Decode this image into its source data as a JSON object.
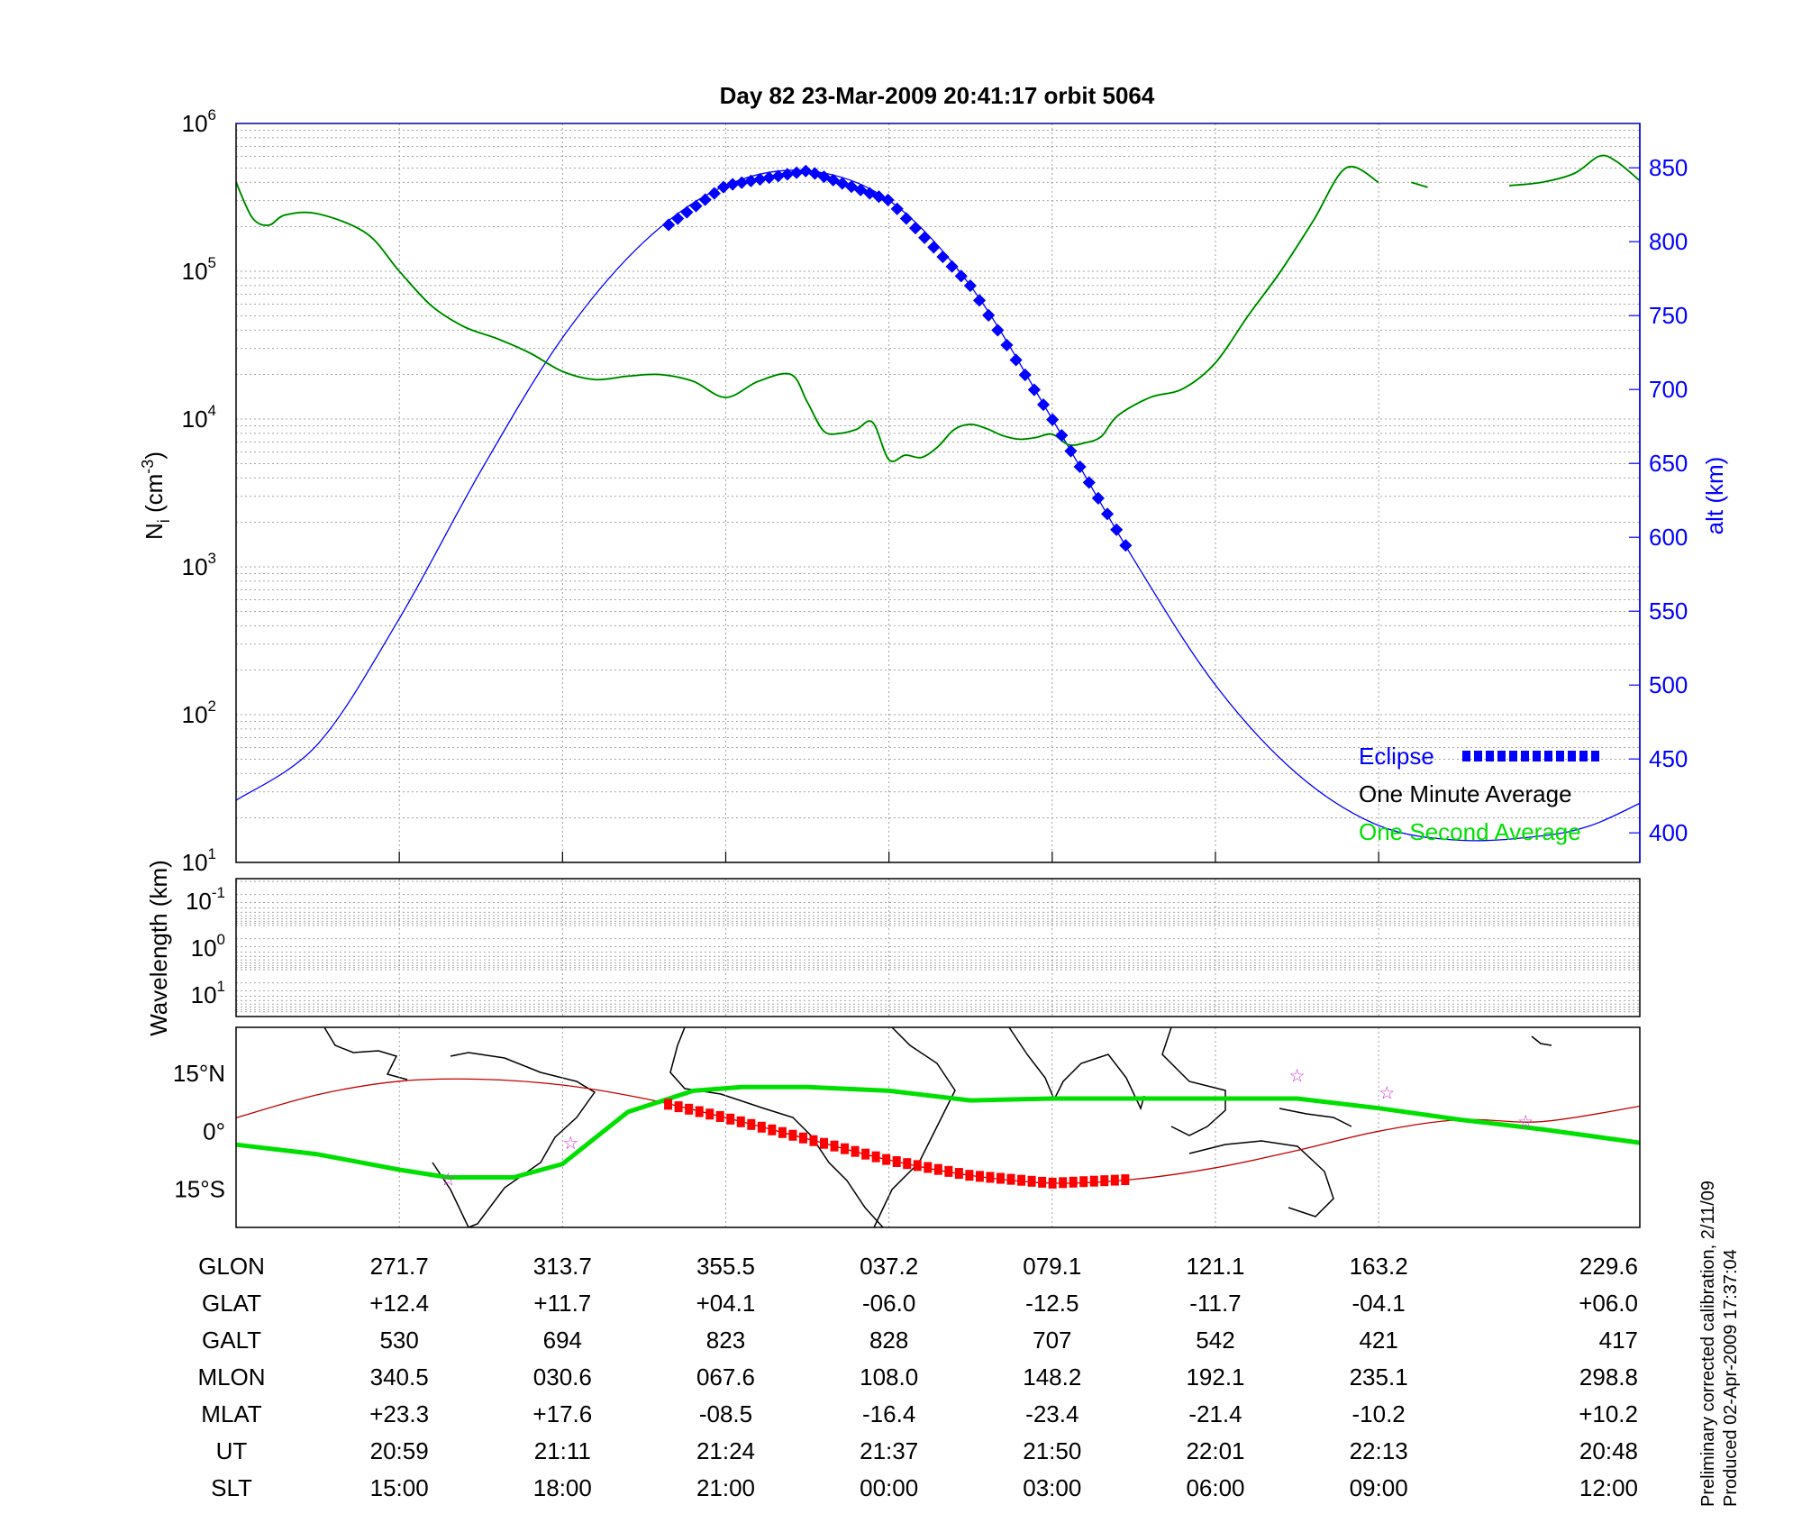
{
  "title": "Day 82  23-Mar-2009 20:41:17   orbit 5064",
  "colors": {
    "green": "#00e000",
    "darkgreen": "#006400",
    "blue": "#0000ff",
    "red": "#ff0000",
    "track": "#c00000",
    "magenta": "#cc33cc"
  },
  "chart_data": [
    {
      "type": "line",
      "name": "ion-density-altitude",
      "ylabel": "N_i (cm^-3)",
      "ylabel_right": "alt (km)",
      "y_log": true,
      "ylim": [
        10,
        1000000
      ],
      "y_ticks": [
        "10",
        "10",
        "10",
        "10",
        "10",
        "10"
      ],
      "y_tick_exps": [
        "1",
        "2",
        "3",
        "4",
        "5",
        "6"
      ],
      "y2lim": [
        380,
        880
      ],
      "y2_ticks": [
        "400",
        "450",
        "500",
        "550",
        "600",
        "650",
        "700",
        "750",
        "800",
        "850"
      ],
      "grid": true,
      "legend": {
        "position": "bottom-right",
        "entries": [
          "Eclipse",
          "One Minute Average",
          "One Second Average"
        ]
      },
      "x_range": [
        0,
        8.6
      ],
      "series": [
        {
          "name": "One Minute Average",
          "x": [
            0,
            0.1,
            0.2,
            0.3,
            0.5,
            0.8,
            1.0,
            1.2,
            1.4,
            1.6,
            1.8,
            2.0,
            2.2,
            2.4,
            2.6,
            2.8,
            3.0,
            3.2,
            3.4,
            3.5,
            3.6,
            3.7,
            3.8,
            3.9,
            4.0,
            4.1,
            4.2,
            4.3,
            4.4,
            4.5,
            4.6,
            4.7,
            4.8,
            4.9,
            5.0,
            5.1,
            5.2,
            5.3,
            5.4,
            5.6,
            5.8,
            6.0,
            6.2,
            6.4,
            6.6,
            6.8,
            7.0,
            7.05,
            7.1,
            7.2,
            7.3
          ],
          "y": [
            400000,
            230000,
            205000,
            240000,
            245000,
            180000,
            100000,
            58000,
            42000,
            35000,
            28000,
            21000,
            18500,
            19500,
            20000,
            18000,
            14000,
            18000,
            20000,
            13000,
            8300,
            8000,
            8500,
            9500,
            5300,
            5700,
            5500,
            6500,
            8500,
            9200,
            8600,
            7700,
            7300,
            7500,
            7900,
            6700,
            6900,
            7600,
            10500,
            14000,
            16000,
            24000,
            50000,
            100000,
            220000,
            500000,
            400000,
            null,
            null,
            400000,
            370000
          ]
        },
        {
          "name": "One Minute Average (late)",
          "x": [
            7.8,
            8.0,
            8.2,
            8.35,
            8.45,
            8.6
          ],
          "y": [
            380000,
            400000,
            460000,
            600000,
            560000,
            410000
          ]
        },
        {
          "name": "altitude",
          "axis": "right",
          "x": [
            0,
            0.5,
            1.0,
            1.5,
            2.0,
            2.5,
            3.0,
            3.5,
            4.0,
            4.5,
            5.0,
            5.5,
            6.0,
            6.5,
            7.0,
            7.5,
            8.0,
            8.3,
            8.6
          ],
          "y": [
            422,
            460,
            545,
            645,
            735,
            800,
            838,
            848,
            828,
            770,
            680,
            585,
            500,
            440,
            405,
            395,
            398,
            405,
            420
          ]
        },
        {
          "name": "Eclipse",
          "axis": "right",
          "x_start": 2.65,
          "x_end": 5.45
        }
      ]
    },
    {
      "type": "line",
      "name": "wavelength",
      "ylabel": "Wavelength (km)",
      "y_ticks": [
        "10",
        "10",
        "10"
      ],
      "y_tick_exps": [
        "-1",
        "0",
        "1"
      ],
      "grid": true
    },
    {
      "type": "line",
      "name": "map-track",
      "y_ticks": [
        "15°N",
        "0°",
        "15°S"
      ],
      "ylim": [
        -25,
        27
      ],
      "series": [
        {
          "name": "geographic-track",
          "x": [
            0,
            0.5,
            1.0,
            1.3,
            1.7,
            2.0,
            2.4,
            2.8,
            3.1,
            3.5,
            4.0,
            4.5,
            5.0,
            5.5,
            6.0,
            6.5,
            7.0,
            7.5,
            8.0,
            8.6
          ],
          "y": [
            -3.5,
            -6,
            -10,
            -12,
            -12,
            -8.5,
            5,
            10.5,
            11.5,
            11.5,
            10.5,
            8,
            8.5,
            8.5,
            8.5,
            8.5,
            6,
            3,
            0.5,
            -3
          ]
        },
        {
          "name": "magnetic-equator-track",
          "x": [
            0,
            0.5,
            1.0,
            1.5,
            2.0,
            2.5,
            3.0,
            3.5,
            4.0,
            4.5,
            5.0,
            5.5,
            6.0,
            6.5,
            7.0,
            7.5,
            8.0,
            8.6
          ],
          "y": [
            3.5,
            9.5,
            13,
            13.5,
            12,
            8.5,
            3.5,
            -2,
            -7.5,
            -11.5,
            -13.5,
            -12.5,
            -9.5,
            -5,
            0,
            3,
            2.5,
            6.5
          ]
        },
        {
          "name": "eclipse-track",
          "x_start": 2.65,
          "x_end": 5.45
        }
      ]
    }
  ],
  "table": {
    "row_labels": [
      "GLON",
      "GLAT",
      "GALT",
      "MLON",
      "MLAT",
      "UT",
      "SLT"
    ],
    "columns": [
      [
        "271.7",
        "+12.4",
        "530",
        "340.5",
        "+23.3",
        "20:59",
        "15:00"
      ],
      [
        "313.7",
        "+11.7",
        "694",
        "030.6",
        "+17.6",
        "21:11",
        "18:00"
      ],
      [
        "355.5",
        "+04.1",
        "823",
        "067.6",
        "-08.5",
        "21:24",
        "21:00"
      ],
      [
        "037.2",
        "-06.0",
        "828",
        "108.0",
        "-16.4",
        "21:37",
        "00:00"
      ],
      [
        "079.1",
        "-12.5",
        "707",
        "148.2",
        "-23.4",
        "21:50",
        "03:00"
      ],
      [
        "121.1",
        "-11.7",
        "542",
        "192.1",
        "-21.4",
        "22:01",
        "06:00"
      ],
      [
        "163.2",
        "-04.1",
        "421",
        "235.1",
        "-10.2",
        "22:13",
        "09:00"
      ],
      [
        "229.6",
        "+06.0",
        "417",
        "298.8",
        "+10.2",
        "20:48",
        "12:00"
      ]
    ]
  },
  "footer": {
    "line1": "Preliminary corrected calibration, 2/11/09",
    "line2": "Produced 02-Apr-2009 17:37:04"
  }
}
